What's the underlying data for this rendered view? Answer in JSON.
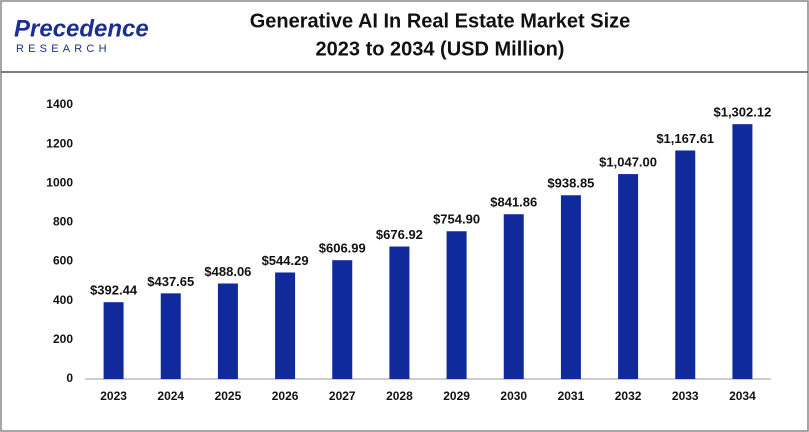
{
  "logo": {
    "name": "Precedence",
    "tagline": "RESEARCH"
  },
  "chart_data": {
    "type": "bar",
    "title": "Generative AI In Real Estate Market Size",
    "subtitle": "2023 to 2034 (USD Million)",
    "categories": [
      "2023",
      "2024",
      "2025",
      "2026",
      "2027",
      "2028",
      "2029",
      "2030",
      "2031",
      "2032",
      "2033",
      "2034"
    ],
    "values": [
      392.44,
      437.65,
      488.06,
      544.29,
      606.99,
      676.92,
      754.9,
      841.86,
      938.85,
      1047.0,
      1167.61,
      1302.12
    ],
    "value_labels": [
      "$392.44",
      "$437.65",
      "$488.06",
      "$544.29",
      "$606.99",
      "$676.92",
      "$754.90",
      "$841.86",
      "$938.85",
      "$1,047.00",
      "$1,167.61",
      "$1,302.12"
    ],
    "color": "#102a9c",
    "ylim": [
      0,
      1400
    ],
    "yticks": [
      0,
      200,
      400,
      600,
      800,
      1000,
      1200,
      1400
    ],
    "grid": false
  }
}
